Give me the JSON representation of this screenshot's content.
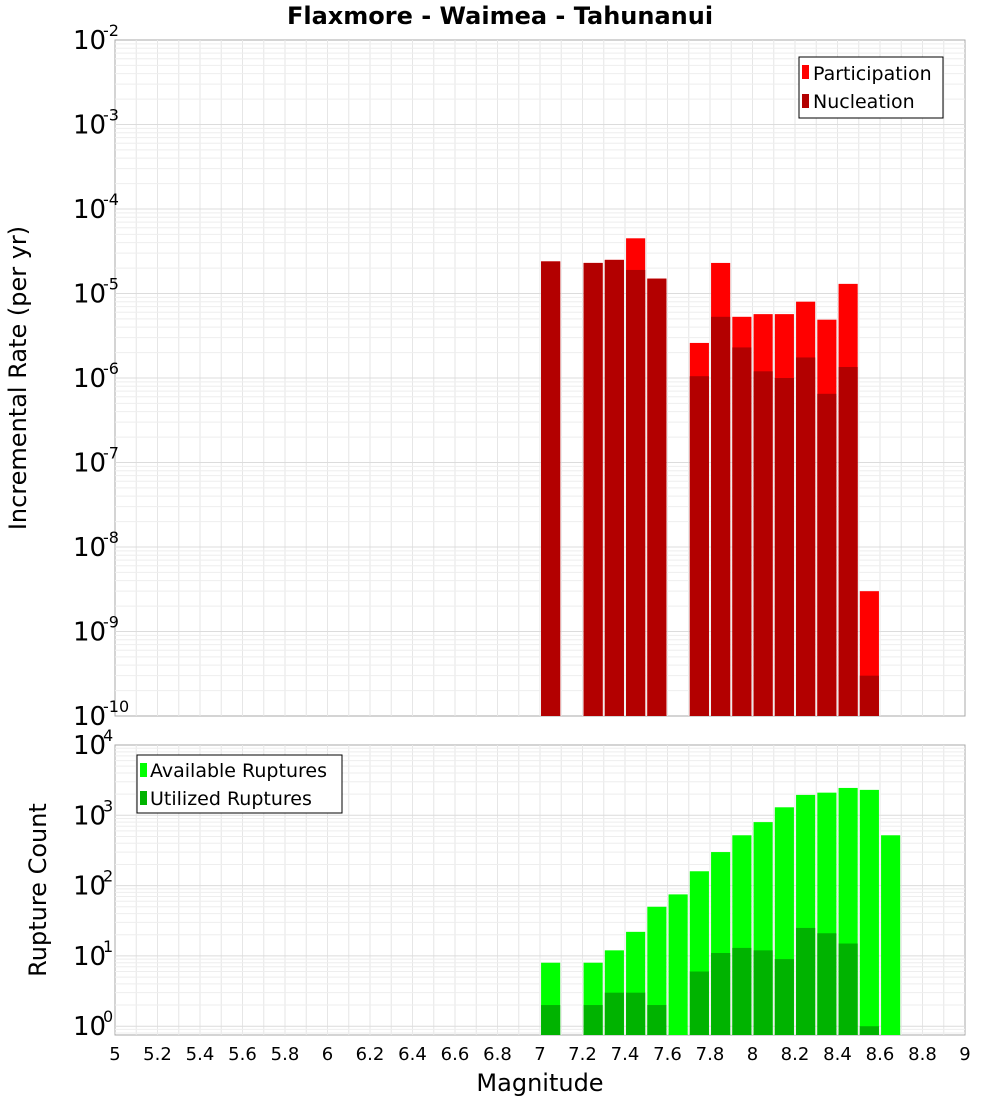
{
  "chart_data": [
    {
      "type": "bar",
      "title": "Flaxmore - Waimea - Tahunanui",
      "xlabel": "Magnitude",
      "ylabel": "Incremental Rate (per yr)",
      "xlim": [
        5,
        9
      ],
      "ylim": [
        1e-10,
        0.01
      ],
      "yscale": "log",
      "bar_width": 0.09,
      "grid": true,
      "legend_position": "top-right",
      "y_tick_exponents": [
        "-10",
        "-9",
        "-8",
        "-7",
        "-6",
        "-5",
        "-4",
        "-3",
        "-2"
      ],
      "x": [
        7.05,
        7.25,
        7.35,
        7.45,
        7.55,
        7.75,
        7.85,
        7.95,
        8.05,
        8.15,
        8.25,
        8.35,
        8.45,
        8.55
      ],
      "series": [
        {
          "name": "Participation",
          "color": "#ff0000",
          "values": [
            2.4e-05,
            2.3e-05,
            2.5e-05,
            4.5e-05,
            1.5e-05,
            2.6e-06,
            2.3e-05,
            5.3e-06,
            5.7e-06,
            5.7e-06,
            8e-06,
            4.9e-06,
            1.3e-05,
            3e-09
          ]
        },
        {
          "name": "Nucleation",
          "color": "#b30000",
          "values": [
            2.4e-05,
            2.3e-05,
            2.5e-05,
            1.9e-05,
            1.5e-05,
            1.05e-06,
            5.3e-06,
            2.3e-06,
            1.2e-06,
            1e-06,
            1.75e-06,
            6.5e-07,
            1.35e-06,
            3e-10
          ]
        }
      ]
    },
    {
      "type": "bar",
      "xlabel": "Magnitude",
      "ylabel": "Rupture Count",
      "xlim": [
        5,
        9
      ],
      "ylim": [
        0.75,
        10000
      ],
      "yscale": "log",
      "bar_width": 0.09,
      "grid": true,
      "legend_position": "top-left",
      "y_tick_exponents": [
        "0",
        "1",
        "2",
        "3",
        "4"
      ],
      "x_ticks": [
        "5",
        "5.2",
        "5.4",
        "5.6",
        "5.8",
        "6",
        "6.2",
        "6.4",
        "6.6",
        "6.8",
        "7",
        "7.2",
        "7.4",
        "7.6",
        "7.8",
        "8",
        "8.2",
        "8.4",
        "8.6",
        "8.8",
        "9"
      ],
      "x": [
        7.05,
        7.25,
        7.35,
        7.45,
        7.55,
        7.65,
        7.75,
        7.85,
        7.95,
        8.05,
        8.15,
        8.25,
        8.35,
        8.45,
        8.55,
        8.65
      ],
      "series": [
        {
          "name": "Available Ruptures",
          "color": "#00ff00",
          "values": [
            8,
            8,
            12,
            22,
            50,
            75,
            160,
            300,
            520,
            800,
            1300,
            1950,
            2100,
            2450,
            2300,
            520
          ]
        },
        {
          "name": "Utilized Ruptures",
          "color": "#00b300",
          "values": [
            2,
            2,
            3,
            3,
            2,
            null,
            6,
            11,
            13,
            12,
            9,
            25,
            21,
            15,
            1,
            null
          ]
        }
      ]
    }
  ]
}
